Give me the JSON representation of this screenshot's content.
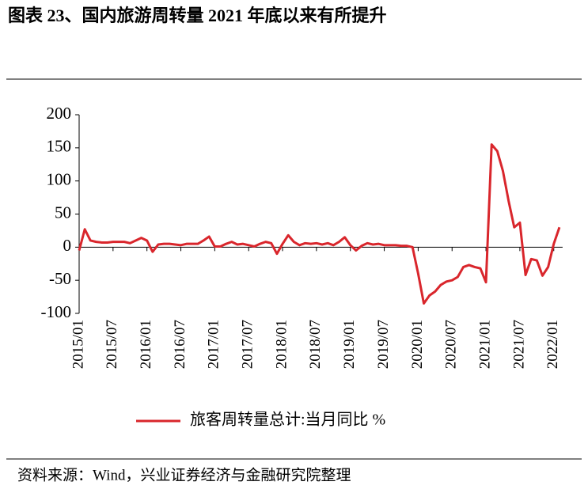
{
  "chart_data": {
    "type": "line",
    "title": "图表 23、国内旅游周转量 2021 年底以来有所提升",
    "source": "资料来源：Wind，兴业证券经济与金融研究院整理",
    "categories": [
      "2015/01",
      null,
      null,
      null,
      null,
      null,
      "2015/07",
      null,
      null,
      null,
      null,
      null,
      "2016/01",
      null,
      null,
      null,
      null,
      null,
      "2016/07",
      null,
      null,
      null,
      null,
      null,
      "2017/01",
      null,
      null,
      null,
      null,
      null,
      "2017/07",
      null,
      null,
      null,
      null,
      null,
      "2018/01",
      null,
      null,
      null,
      null,
      null,
      "2018/07",
      null,
      null,
      null,
      null,
      null,
      "2019/01",
      null,
      null,
      null,
      null,
      null,
      "2019/07",
      null,
      null,
      null,
      null,
      null,
      "2020/01",
      null,
      null,
      null,
      null,
      null,
      "2020/07",
      null,
      null,
      null,
      null,
      null,
      "2021/01",
      null,
      null,
      null,
      null,
      null,
      "2021/07",
      null,
      null,
      null,
      null,
      null,
      "2022/01",
      null
    ],
    "series": [
      {
        "name": "旅客周转量总计:当月同比 %",
        "color": "#d9262c",
        "values": [
          -5,
          27,
          10,
          8,
          7,
          7,
          8,
          8,
          8,
          6,
          10,
          14,
          10,
          -7,
          4,
          5,
          5,
          4,
          3,
          5,
          5,
          5,
          10,
          16,
          1,
          1,
          5,
          8,
          4,
          5,
          3,
          1,
          5,
          8,
          6,
          -10,
          5,
          18,
          8,
          3,
          6,
          5,
          6,
          4,
          6,
          3,
          8,
          15,
          3,
          -5,
          2,
          6,
          4,
          5,
          3,
          3,
          3,
          2,
          2,
          0,
          -40,
          -85,
          -73,
          -67,
          -57,
          -52,
          -50,
          -45,
          -30,
          -27,
          -30,
          -32,
          -53,
          155,
          145,
          115,
          70,
          30,
          37,
          -42,
          -18,
          -20,
          -43,
          -30,
          5,
          30
        ]
      }
    ],
    "ylim": [
      -100,
      200
    ],
    "yticks": [
      -100,
      -50,
      0,
      50,
      100,
      150,
      200
    ]
  }
}
